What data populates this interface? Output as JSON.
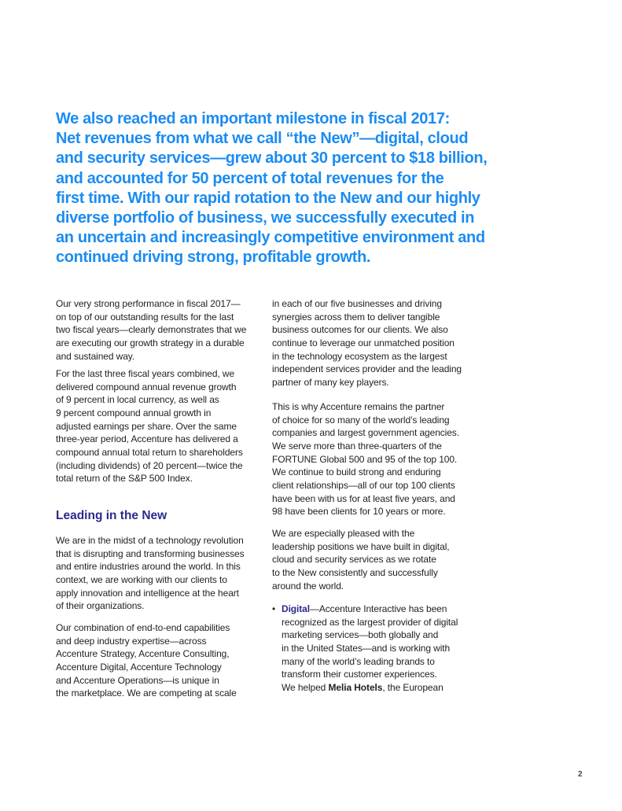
{
  "pull_quote": [
    "We also reached an important milestone in fiscal 2017:",
    "Net revenues from what we call “the New”—digital, cloud",
    "and security services—grew about 30 percent to $18 billion,",
    "and accounted for 50 percent of total revenues for the",
    "first time. With our rapid rotation to the New and our highly",
    "diverse portfolio of business, we successfully executed in",
    "an uncertain and increasingly competitive environment and",
    "continued driving strong, profitable growth."
  ],
  "left_column": {
    "p1": [
      "Our very strong performance in fiscal 2017—",
      "on top of our outstanding results for the last",
      "two fiscal years—clearly demonstrates that we",
      "are executing our growth strategy in a durable",
      "and sustained way."
    ],
    "p2": [
      "For the last three fiscal years combined, we",
      "delivered compound annual revenue growth",
      "of 9 percent in local currency, as well as",
      "9 percent compound annual growth in",
      "adjusted earnings per share. Over the same",
      "three-year period, Accenture has delivered a",
      "compound annual total return to shareholders",
      "(including dividends) of 20 percent—twice the",
      "total return of the S&P 500 Index."
    ],
    "heading": "Leading in the New",
    "p3": [
      "We are in the midst of a technology revolution",
      "that is disrupting and transforming businesses",
      "and entire industries around the world. In this",
      "context, we are working with our clients to",
      "apply innovation and intelligence at the heart",
      "of their organizations."
    ],
    "p4": [
      "Our combination of end-to-end capabilities",
      "and deep industry expertise—across",
      "Accenture Strategy, Accenture Consulting,",
      "Accenture Digital, Accenture Technology",
      "and Accenture Operations—is unique in",
      "the marketplace. We are competing at scale"
    ]
  },
  "right_column": {
    "p1": [
      "in each of our five businesses and driving",
      "synergies across them to deliver tangible",
      "business outcomes for our clients. We also",
      "continue to leverage our unmatched position",
      "in the technology ecosystem as the largest",
      "independent services provider and the leading",
      "partner of many key players."
    ],
    "p2": [
      "This is why Accenture remains the partner",
      "of choice for so many of the world’s leading",
      "companies and largest government agencies.",
      "We serve more than three-quarters of the",
      "FORTUNE Global 500 and 95 of the top 100.",
      "We continue to build strong and enduring",
      "client relationships—all of our top 100 clients",
      "have been with us for at least five years, and",
      "98 have been clients for 10 years or more."
    ],
    "p3": [
      "We are especially pleased with the",
      "leadership positions we have built in digital,",
      "cloud and security services as we rotate",
      "to the New consistently and successfully",
      "around the world."
    ],
    "bullet": {
      "marker": "•",
      "term": "Digital",
      "first_line_rest": "—Accenture Interactive has been",
      "lines": [
        "recognized as the largest provider of digital",
        "marketing services—both globally and",
        "in the United States—and is working with",
        "many of the world’s leading brands to",
        "transform their customer experiences."
      ],
      "last_line_start": "We helped ",
      "last_line_bold": "Melia Hotels",
      "last_line_end": ", the European"
    }
  },
  "page_number": "2",
  "colors": {
    "quote": "#1b8cf2",
    "heading": "#2a2a8c",
    "body": "#222222"
  }
}
